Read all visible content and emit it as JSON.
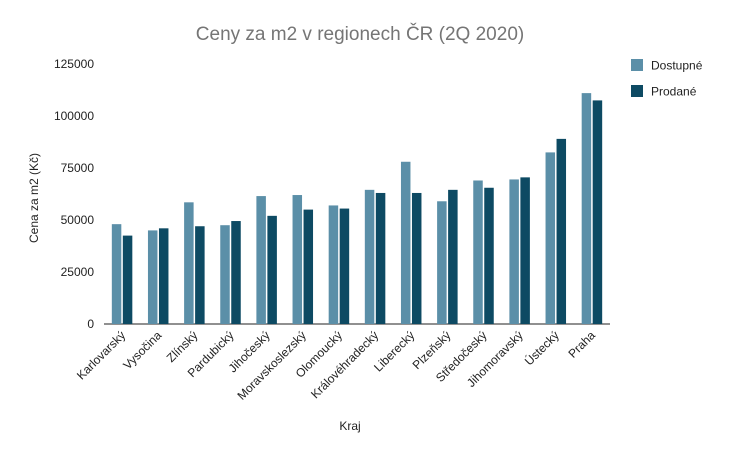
{
  "chart_data": {
    "type": "bar",
    "title": "Ceny za m2 v regionech ČR (2Q 2020)",
    "xlabel": "Kraj",
    "ylabel": "Cena za m2 (Kč)",
    "ylim": [
      0,
      125000
    ],
    "yticks": [
      0,
      25000,
      50000,
      75000,
      100000,
      125000
    ],
    "grid": false,
    "legend_position": "right",
    "categories": [
      "Karlovarský",
      "Vysočina",
      "Zlínský",
      "Pardubický",
      "Jihočeský",
      "Moravskoslezský",
      "Olomoucký",
      "Královéhradecký",
      "Liberecký",
      "Plzeňský",
      "Středočeský",
      "Jihomoravský",
      "Ústecký",
      "Praha"
    ],
    "series": [
      {
        "name": "Dostupné",
        "color": "#5b8fa8",
        "values": [
          48000,
          45000,
          58500,
          47500,
          61500,
          62000,
          57000,
          64500,
          78000,
          59000,
          69000,
          69500,
          82500,
          111000
        ]
      },
      {
        "name": "Prodané",
        "color": "#0d4a63",
        "values": [
          42500,
          46000,
          47000,
          49500,
          52000,
          55000,
          55500,
          63000,
          63000,
          64500,
          65500,
          70500,
          89000,
          107500
        ]
      }
    ]
  }
}
